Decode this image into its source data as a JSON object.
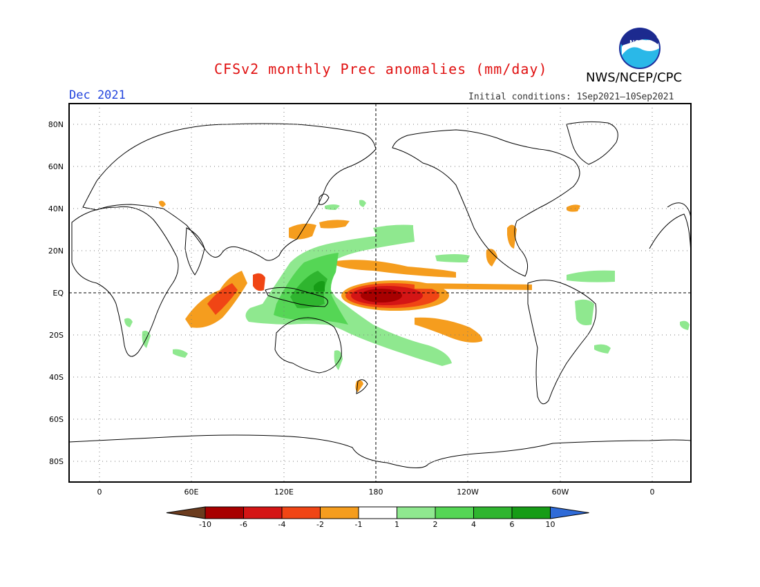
{
  "header": {
    "title": "CFSv2 monthly Prec anomalies (mm/day)",
    "agency": "NWS/NCEP/CPC",
    "valid_month": "Dec 2021",
    "ic_label": "Initial conditions:",
    "ic_range": "1Sep2021—10Sep2021",
    "logo_text": "NOAA"
  },
  "map": {
    "lat_labels": [
      "80N",
      "60N",
      "40N",
      "20N",
      "EQ",
      "20S",
      "40S",
      "60S",
      "80S"
    ],
    "lon_labels": [
      "0",
      "60E",
      "120E",
      "180",
      "120W",
      "60W",
      "0"
    ],
    "grid": "dotted",
    "projection": "cylindrical equidistant"
  },
  "legend": {
    "tick_labels": [
      "-10",
      "-6",
      "-4",
      "-2",
      "-1",
      "1",
      "2",
      "4",
      "6",
      "10"
    ],
    "colors": [
      "#6b3b1e",
      "#a80000",
      "#d41515",
      "#f04515",
      "#f59d1e",
      "#ffffff",
      "#8fe88f",
      "#55d655",
      "#2fb52f",
      "#169c16",
      "#2f6bd8"
    ]
  },
  "colors": {
    "title": "#e01010",
    "month": "#2244dd",
    "land_outline": "#000000"
  }
}
